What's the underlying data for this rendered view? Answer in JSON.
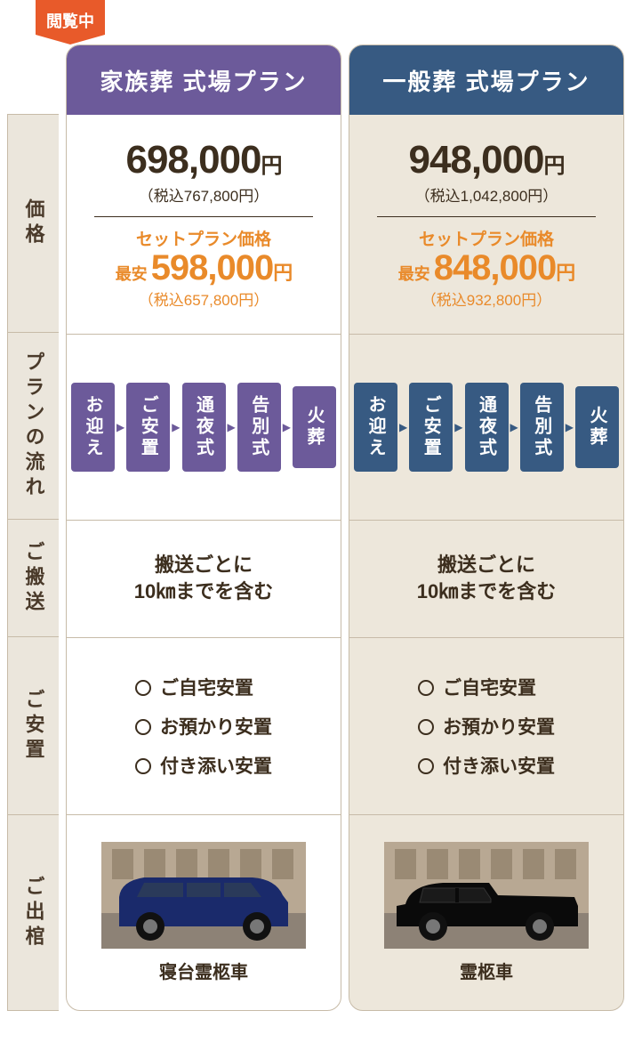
{
  "badge": "閲覧中",
  "row_labels": {
    "price": "価格",
    "flow": "プランの流れ",
    "transport": "ご搬送",
    "rest": "ご安置",
    "coffin": "ご出棺"
  },
  "plans": [
    {
      "title": "家族葬 式場プラン",
      "header_bg": "#6c5a9a",
      "flow_bg": "#6c5a9a",
      "flow_arrow_color": "#6c5a9a",
      "col_bg": "#ffffff",
      "price": "698,000",
      "price_tax": "（税込767,800円）",
      "set_label": "セットプラン価格",
      "set_prefix": "最安",
      "set_price": "598,000",
      "set_tax": "（税込657,800円）",
      "flow_steps": [
        "お迎え",
        "ご安置",
        "通夜式",
        "告別式",
        "火葬"
      ],
      "transport_l1": "搬送ごとに",
      "transport_l2": "10㎞までを含む",
      "rest_items": [
        "ご自宅安置",
        "お預かり安置",
        "付き添い安置"
      ],
      "car_label": "寝台霊柩車",
      "car_color": "#1a2a6b",
      "car_type": "van"
    },
    {
      "title": "一般葬 式場プラン",
      "header_bg": "#375a82",
      "flow_bg": "#375a82",
      "flow_arrow_color": "#375a82",
      "col_bg": "#ede7db",
      "price": "948,000",
      "price_tax": "（税込1,042,800円）",
      "set_label": "セットプラン価格",
      "set_prefix": "最安",
      "set_price": "848,000",
      "set_tax": "（税込932,800円）",
      "flow_steps": [
        "お迎え",
        "ご安置",
        "通夜式",
        "告別式",
        "火葬"
      ],
      "transport_l1": "搬送ごとに",
      "transport_l2": "10㎞までを含む",
      "rest_items": [
        "ご自宅安置",
        "お預かり安置",
        "付き添い安置"
      ],
      "car_label": "霊柩車",
      "car_color": "#0a0a0a",
      "car_type": "hearse"
    }
  ],
  "row_heights": {
    "header": 78,
    "price": 246,
    "flow": 210,
    "transport": 132,
    "rest": 200,
    "coffin": 220
  },
  "bg_building": "#b8a893"
}
